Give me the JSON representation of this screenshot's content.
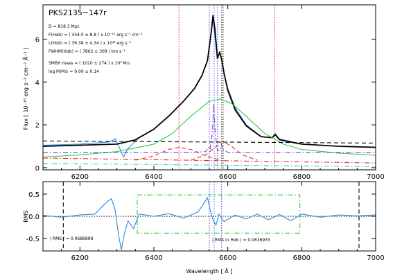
{
  "object_name": "PKS2135−147r",
  "annotations": {
    "distance": "D =  818.3 Mpc",
    "flux": "F(Hαb) = (   454.0 ±   8.8 ) x 10⁻¹⁵ erg s⁻¹ cm⁻²",
    "luminosity": "L(Hαb) = (  36.38 ±  4.34 ) x 10⁴² erg s⁻¹",
    "fwhm": "FWHM(Hαb) = (  7862 ±  309 ) km s⁻¹",
    "smbh_mass": "SMBH mass = ( 1010 ±  274 ) x 10⁶ M⊙",
    "log_mass": "log M/M⊙ =   9.00 ±  0.14",
    "rms_total": "| RMS | =   0.0686898",
    "rms_halpha": "| RMS in Hαb | =   0.0636933"
  },
  "chart_data": [
    {
      "type": "line",
      "panel": "spectrum",
      "ylabel": "Flux [ 10⁻¹⁵ erg s⁻¹ cm⁻² Å⁻¹ ]",
      "xlim": [
        6100,
        7000
      ],
      "ylim": [
        -0.1,
        7.6
      ],
      "xticks": [
        6200,
        6400,
        6600,
        6800,
        7000
      ],
      "yticks": [
        0,
        2,
        4,
        6
      ],
      "vlines": [
        {
          "x": 6468,
          "color": "#e8262b",
          "style": "dotted"
        },
        {
          "x": 6550,
          "color": "#7a3fd0",
          "style": "dotted"
        },
        {
          "x": 6563,
          "color": "#2a7de0",
          "style": "dotted"
        },
        {
          "x": 6572,
          "color": "#7a3fd0",
          "style": "dotted"
        },
        {
          "x": 6583,
          "color": "#7a3fd0",
          "style": "dotted"
        },
        {
          "x": 6586,
          "color": "#e8262b",
          "style": "dotted"
        },
        {
          "x": 6588,
          "color": "#2ecc40",
          "style": "dotted"
        },
        {
          "x": 6727,
          "color": "#e8262b",
          "style": "dotted"
        }
      ],
      "series": [
        {
          "key": "observed",
          "color": "#2a8ae0",
          "style": "solid",
          "x": [
            6100,
            6200,
            6280,
            6295,
            6305,
            6318,
            6330,
            6345,
            6360,
            6400,
            6440,
            6480,
            6510,
            6530,
            6545,
            6555,
            6560,
            6565,
            6572,
            6578,
            6584,
            6590,
            6600,
            6620,
            6650,
            6690,
            6720,
            6728,
            6740,
            6800,
            6900,
            7000
          ],
          "y": [
            1.05,
            1.1,
            1.2,
            1.35,
            1.0,
            0.5,
            0.9,
            1.15,
            1.4,
            1.8,
            2.4,
            3.1,
            3.7,
            4.3,
            5.0,
            6.3,
            7.0,
            6.1,
            5.1,
            5.4,
            5.0,
            4.4,
            3.7,
            2.8,
            2.0,
            1.45,
            1.4,
            1.6,
            1.35,
            1.1,
            1.0,
            0.95
          ]
        },
        {
          "key": "total_model",
          "color": "#000000",
          "style": "solid",
          "x": [
            6100,
            6200,
            6300,
            6350,
            6400,
            6440,
            6480,
            6510,
            6530,
            6545,
            6555,
            6560,
            6565,
            6572,
            6578,
            6584,
            6590,
            6600,
            6620,
            6650,
            6690,
            6720,
            6728,
            6740,
            6800,
            6900,
            7000
          ],
          "y": [
            1.0,
            1.05,
            1.1,
            1.3,
            1.8,
            2.4,
            3.1,
            3.7,
            4.3,
            5.0,
            6.3,
            7.1,
            6.5,
            5.1,
            5.4,
            5.0,
            4.4,
            3.6,
            2.7,
            1.95,
            1.45,
            1.4,
            1.55,
            1.3,
            1.1,
            1.0,
            0.95
          ]
        },
        {
          "key": "broad_halpha",
          "color": "#2ecc40",
          "style": "solid",
          "x": [
            6100,
            6200,
            6300,
            6400,
            6450,
            6500,
            6550,
            6580,
            6610,
            6650,
            6700,
            6750,
            6800,
            6900,
            7000
          ],
          "y": [
            0.5,
            0.6,
            0.75,
            1.1,
            1.6,
            2.4,
            3.1,
            3.2,
            3.0,
            2.4,
            1.6,
            1.1,
            0.85,
            0.68,
            0.58
          ]
        },
        {
          "key": "narrow_components",
          "color": "#7a3fd0",
          "style": "dashdot",
          "x": [
            6100,
            6300,
            6400,
            6500,
            6540,
            6548,
            6552,
            6558,
            6562,
            6566,
            6572,
            6580,
            6583,
            6587,
            6600,
            6700,
            7000
          ],
          "y": [
            0.72,
            0.72,
            0.72,
            0.72,
            0.75,
            0.95,
            0.85,
            1.6,
            3.0,
            1.6,
            0.8,
            0.85,
            1.1,
            0.85,
            0.72,
            0.72,
            0.72
          ]
        },
        {
          "key": "red_gaussian_1",
          "color": "#e8262b",
          "style": "dashed",
          "x": [
            6350,
            6400,
            6440,
            6468,
            6500,
            6540,
            6580
          ],
          "y": [
            0.35,
            0.55,
            0.85,
            0.95,
            0.85,
            0.55,
            0.35
          ]
        },
        {
          "key": "red_gaussian_2",
          "color": "#e8262b",
          "style": "dashed",
          "x": [
            6500,
            6540,
            6570,
            6586,
            6610,
            6640,
            6680
          ],
          "y": [
            0.35,
            0.6,
            1.0,
            1.25,
            1.0,
            0.6,
            0.35
          ]
        },
        {
          "key": "red_continuum",
          "color": "#e8262b",
          "style": "dashdot",
          "x": [
            6100,
            7000
          ],
          "y": [
            0.45,
            0.22
          ]
        },
        {
          "key": "cyan_continuum",
          "color": "#2bd0d0",
          "style": "dashdot",
          "x": [
            6100,
            7000
          ],
          "y": [
            0.2,
            0.05
          ]
        },
        {
          "key": "black_continuum",
          "color": "#000000",
          "style": "dashed",
          "x": [
            6100,
            7000
          ],
          "y": [
            1.25,
            1.15
          ]
        }
      ]
    },
    {
      "type": "line",
      "panel": "residuals",
      "xlabel": "Wavelength [ Å ]",
      "ylabel": "RMS",
      "xlim": [
        6100,
        7000
      ],
      "ylim": [
        -0.78,
        0.78
      ],
      "xticks": [
        6200,
        6400,
        6600,
        6800,
        7000
      ],
      "yticks": [
        -0.5,
        0.0,
        0.5
      ],
      "zero_line": true,
      "vlines": [
        {
          "x": 6155,
          "color": "#000000",
          "style": "dashed"
        },
        {
          "x": 6955,
          "color": "#000000",
          "style": "dashed"
        },
        {
          "x": 6550,
          "color": "#7a3fd0",
          "style": "dotted"
        },
        {
          "x": 6563,
          "color": "#2a7de0",
          "style": "dotted"
        },
        {
          "x": 6583,
          "color": "#7a3fd0",
          "style": "dotted"
        }
      ],
      "box": {
        "x0": 6355,
        "x1": 6795,
        "y0": -0.38,
        "y1": 0.48,
        "color": "#2ecc40",
        "style": "dashdot"
      },
      "series": [
        {
          "key": "residuals",
          "color": "#2a8ae0",
          "style": "solid",
          "x": [
            6100,
            6150,
            6200,
            6240,
            6270,
            6285,
            6295,
            6305,
            6312,
            6320,
            6330,
            6345,
            6360,
            6400,
            6440,
            6480,
            6520,
            6545,
            6552,
            6560,
            6568,
            6576,
            6590,
            6620,
            6650,
            6680,
            6710,
            6740,
            6770,
            6800,
            6850,
            6900,
            6950,
            7000
          ],
          "y": [
            0.02,
            -0.02,
            0.03,
            0.05,
            0.3,
            0.4,
            0.15,
            -0.45,
            -0.75,
            -0.4,
            -0.1,
            -0.28,
            0.05,
            0.0,
            0.06,
            -0.04,
            0.1,
            0.42,
            0.15,
            -0.08,
            -0.2,
            0.05,
            -0.12,
            0.03,
            -0.06,
            0.05,
            -0.08,
            0.04,
            -0.1,
            0.05,
            -0.02,
            0.03,
            0.01,
            0.03
          ]
        }
      ]
    }
  ]
}
